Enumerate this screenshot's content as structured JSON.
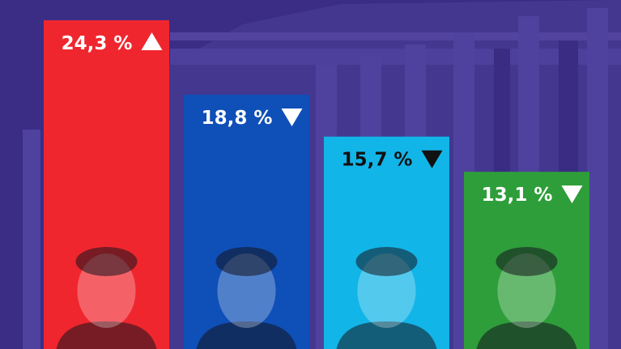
{
  "chart_data": {
    "type": "bar",
    "categories": [
      "",
      "",
      "",
      ""
    ],
    "values": [
      24.3,
      18.8,
      15.7,
      13.1
    ],
    "value_labels": [
      "24,3 %",
      "18,8 %",
      "15,7 %",
      "13,1 %"
    ],
    "trend": [
      "up",
      "down",
      "down",
      "down"
    ],
    "colors": [
      "#f0262e",
      "#0f4fb8",
      "#12b5e8",
      "#2e9e3a"
    ],
    "label_colors": [
      "#ffffff",
      "#ffffff",
      "#111111",
      "#ffffff"
    ],
    "title": "",
    "xlabel": "",
    "ylabel": "",
    "ylim": [
      0,
      25.8
    ],
    "grid": false,
    "legend": "none"
  },
  "colors": {
    "background": "#3b2d86",
    "building": "#4a3c98"
  },
  "icons": {
    "up": "triangle-up-icon",
    "down": "triangle-down-icon",
    "portrait": "person-portrait-icon"
  }
}
